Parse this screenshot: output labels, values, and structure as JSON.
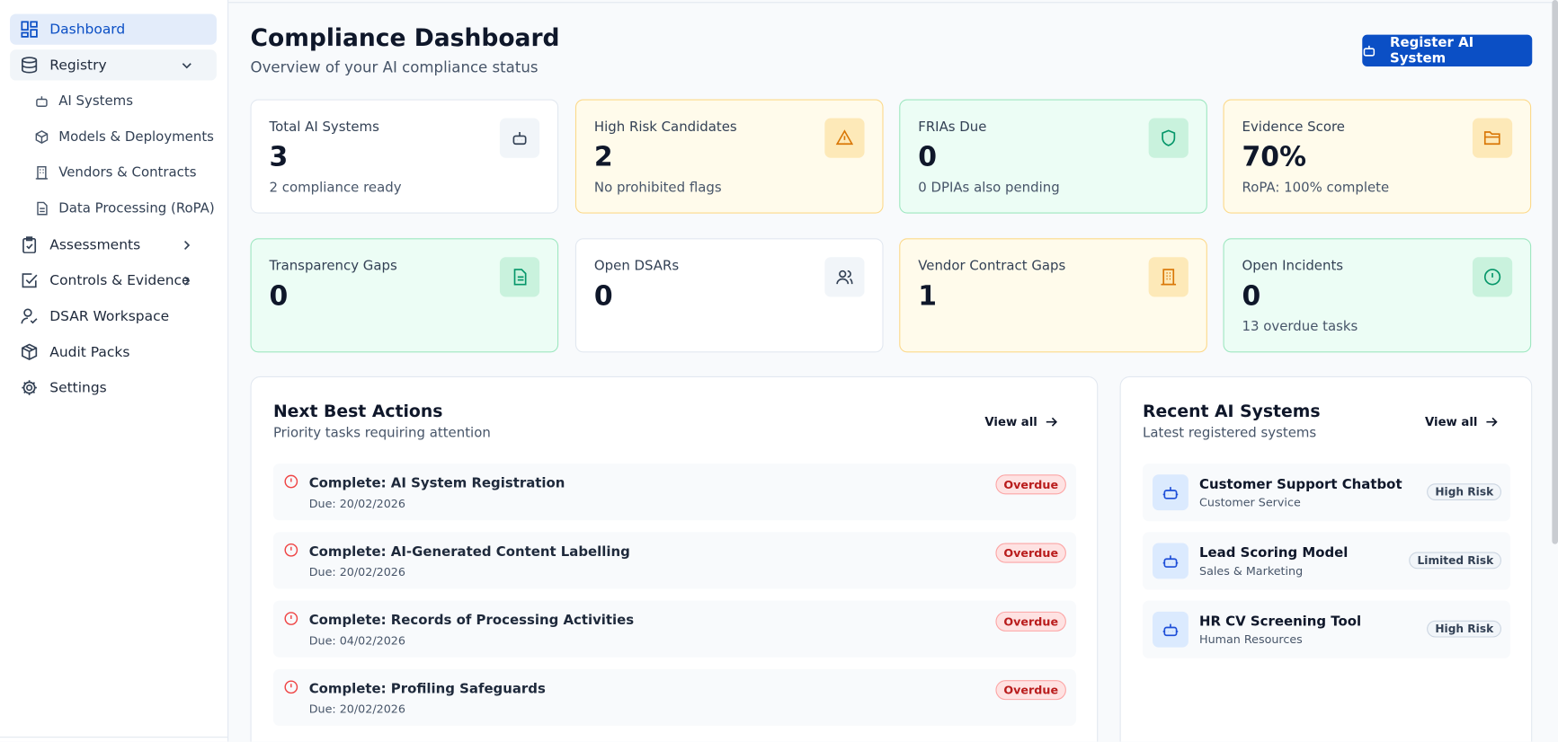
{
  "sidebar": {
    "items": [
      "Dashboard",
      "Registry",
      "Assessments",
      "Controls & Evidence",
      "DSAR Workspace",
      "Audit Packs",
      "Settings"
    ],
    "registry_children": [
      "AI Systems",
      "Models & Deployments",
      "Vendors & Contracts",
      "Data Processing (RoPA)"
    ]
  },
  "header": {
    "title": "Compliance Dashboard",
    "subtitle": "Overview of your AI compliance status",
    "button": "Register AI System"
  },
  "stats": [
    {
      "label": "Total AI Systems",
      "value": 3,
      "note": "2 compliance ready"
    },
    {
      "label": "High Risk Candidates",
      "value": 2,
      "note": "No prohibited flags"
    },
    {
      "label": "FRIAs Due",
      "value": 0,
      "note": "0 DPIAs also pending"
    },
    {
      "label": "Evidence Score",
      "value": "70%",
      "note": "RoPA: 100% complete"
    },
    {
      "label": "Transparency Gaps",
      "value": 0
    },
    {
      "label": "Open DSARs",
      "value": 0
    },
    {
      "label": "Vendor Contract Gaps",
      "value": 1
    },
    {
      "label": "Open Incidents",
      "value": 0,
      "note": "13 overdue tasks"
    }
  ],
  "actions": {
    "title": "Next Best Actions",
    "subtitle": "Priority tasks requiring attention",
    "view_all": "View all",
    "items": [
      {
        "title": "Complete: AI System Registration",
        "due": "Due: 20/02/2026",
        "status": "Overdue"
      },
      {
        "title": "Complete: AI-Generated Content Labelling",
        "due": "Due: 20/02/2026",
        "status": "Overdue"
      },
      {
        "title": "Complete: Records of Processing Activities",
        "due": "Due: 04/02/2026",
        "status": "Overdue"
      },
      {
        "title": "Complete: Profiling Safeguards",
        "due": "Due: 20/02/2026",
        "status": "Overdue"
      }
    ]
  },
  "recent": {
    "title": "Recent AI Systems",
    "subtitle": "Latest registered systems",
    "view_all": "View all",
    "items": [
      {
        "name": "Customer Support Chatbot",
        "department": "Customer Service",
        "risk": "High Risk"
      },
      {
        "name": "Lead Scoring Model",
        "department": "Sales & Marketing",
        "risk": "Limited Risk"
      },
      {
        "name": "HR CV Screening Tool",
        "department": "Human Resources",
        "risk": "High Risk"
      }
    ]
  }
}
